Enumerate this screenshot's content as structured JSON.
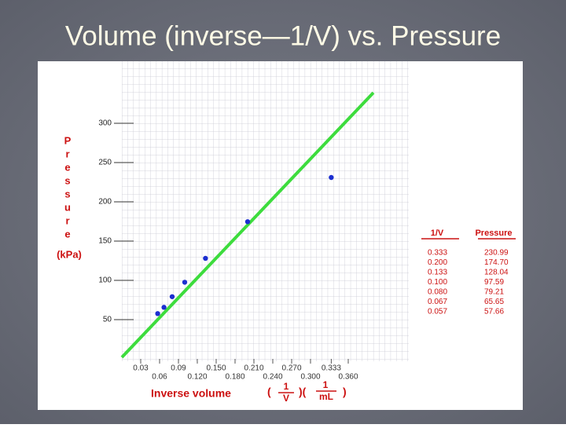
{
  "title": "Volume (inverse—1/V) vs. Pressure",
  "chart_data": {
    "type": "scatter",
    "y_label_letters": [
      "P",
      "r",
      "e",
      "s",
      "s",
      "u",
      "r",
      "e"
    ],
    "y_unit": "(kPa)",
    "x_label": "Inverse volume",
    "x_unit_left": "1",
    "x_unit_left_den": "V",
    "x_unit_right": "1",
    "x_unit_right_den": "mL",
    "x": [
      0.333,
      0.2,
      0.133,
      0.1,
      0.08,
      0.067,
      0.057
    ],
    "series": [
      {
        "name": "Pressure",
        "color": "#1c2fd0",
        "values": [
          230.99,
          174.7,
          128.04,
          97.59,
          79.21,
          65.65,
          57.66
        ]
      }
    ],
    "fit_line": {
      "color": "#3ddc3d",
      "x": [
        0,
        0.4
      ],
      "values": [
        2,
        339
      ]
    },
    "xlim": [
      0,
      0.45
    ],
    "ylim": [
      0,
      380
    ],
    "yticks": [
      50,
      100,
      150,
      200,
      250,
      300
    ],
    "xticks": [
      0.03,
      0.06,
      0.09,
      {
        "value": 0.12,
        "label": "0.120"
      },
      {
        "value": 0.15,
        "label": "0.150"
      },
      {
        "value": 0.18,
        "label": "0.180"
      },
      {
        "value": 0.21,
        "label": "0.210"
      },
      {
        "value": 0.24,
        "label": "0.240"
      },
      {
        "value": 0.27,
        "label": "0.270"
      },
      {
        "value": 0.3,
        "label": "0.300"
      },
      0.333,
      {
        "value": 0.36,
        "label": "0.360"
      }
    ],
    "table": {
      "headers": [
        "1/V",
        "Pressure"
      ],
      "rows": [
        [
          "0.333",
          "230.99"
        ],
        [
          "0.200",
          "174.70"
        ],
        [
          "0.133",
          "128.04"
        ],
        [
          "0.100",
          "97.59"
        ],
        [
          "0.080",
          "79.21"
        ],
        [
          "0.067",
          "65.65"
        ],
        [
          "0.057",
          "57.66"
        ]
      ]
    }
  }
}
